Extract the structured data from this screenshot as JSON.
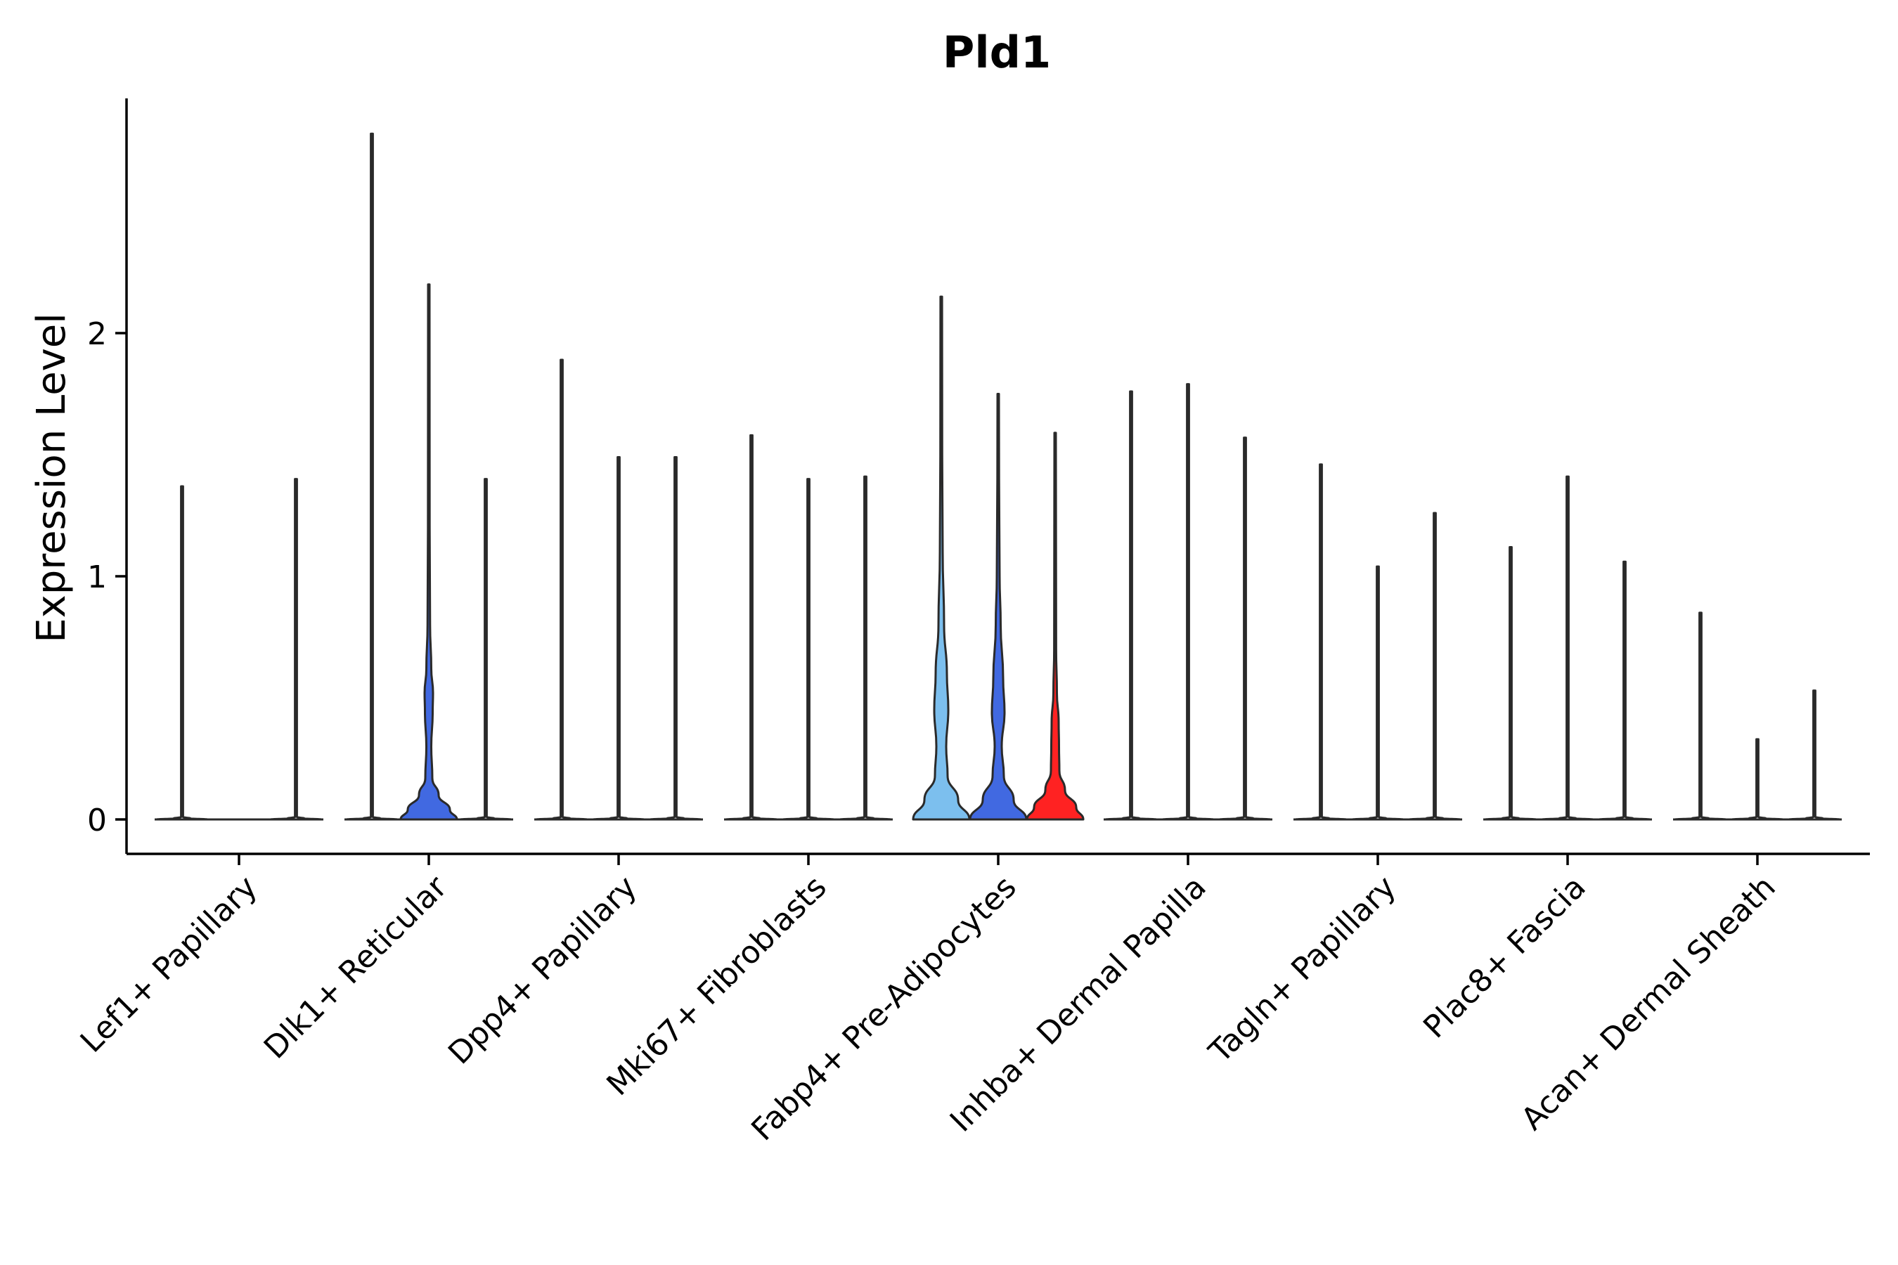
{
  "chart_data": {
    "type": "violin",
    "title": "Pld1",
    "xlabel": "",
    "ylabel": "Expression Level",
    "ylim": [
      -0.14,
      2.95
    ],
    "yticks": [
      0,
      1,
      2
    ],
    "grid": false,
    "legend": "none",
    "categories": [
      "Lef1+ Papillary",
      "Dlk1+ Reticular",
      "Dpp4+ Papillary",
      "Mki67+ Fibroblasts",
      "Fabp4+ Pre-Adipocytes",
      "Inhba+ Dermal Papilla",
      "Tagln+ Papillary",
      "Plac8+ Fascia",
      "Acan+ Dermal Sheath"
    ],
    "series": [
      {
        "name": "group 1",
        "color": "#ffffff",
        "max": [
          1.37,
          2.82,
          1.89,
          1.58,
          2.15,
          1.76,
          1.46,
          1.12,
          0.85
        ],
        "bulge": [
          0,
          0,
          0,
          0,
          1,
          0,
          0,
          0,
          0
        ]
      },
      {
        "name": "group 2",
        "color": "#ffffff",
        "max": [
          null,
          2.2,
          1.49,
          1.4,
          1.75,
          1.79,
          1.04,
          1.41,
          0.33
        ],
        "bulge": [
          0,
          1,
          0,
          0,
          1,
          0,
          0,
          0,
          0
        ]
      },
      {
        "name": "group 3",
        "color": "#ffffff",
        "max": [
          1.4,
          1.4,
          1.49,
          1.41,
          1.59,
          1.57,
          1.26,
          1.06,
          0.53
        ],
        "bulge": [
          0,
          0,
          0,
          0,
          1,
          0,
          0,
          0,
          0
        ]
      }
    ],
    "fills": {
      "Dlk1+ Reticular.group 2": "#4169e1",
      "Fabp4+ Pre-Adipocytes.group 1": "#7cbfee",
      "Fabp4+ Pre-Adipocytes.group 2": "#4169e1",
      "Fabp4+ Pre-Adipocytes.group 3": "#ff2222"
    }
  }
}
